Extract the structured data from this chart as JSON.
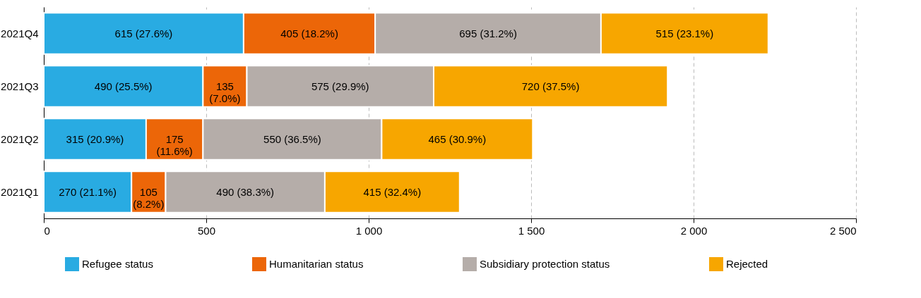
{
  "chart_data": {
    "type": "bar",
    "orientation": "horizontal",
    "stacked": true,
    "categories": [
      "2021Q4",
      "2021Q3",
      "2021Q2",
      "2021Q1"
    ],
    "series": [
      {
        "name": "Refugee status",
        "color": "#29abe2",
        "values": [
          615,
          490,
          315,
          270
        ],
        "value_labels": [
          "615 (27.6%)",
          "490 (25.5%)",
          "315 (20.9%)",
          "270 (21.1%)"
        ]
      },
      {
        "name": "Humanitarian status",
        "color": "#ec6608",
        "values": [
          405,
          135,
          175,
          105
        ],
        "value_labels": [
          "405 (18.2%)",
          "135 (7.0%)",
          "175 (11.6%)",
          "105 (8.2%)"
        ]
      },
      {
        "name": "Subsidiary protection status",
        "color": "#b5ada9",
        "values": [
          695,
          575,
          550,
          490
        ],
        "value_labels": [
          "695 (31.2%)",
          "575 (29.9%)",
          "550 (36.5%)",
          "490 (38.3%)"
        ]
      },
      {
        "name": "Rejected",
        "color": "#f7a600",
        "values": [
          515,
          720,
          465,
          415
        ],
        "value_labels": [
          "515 (23.1%)",
          "720 (37.5%)",
          "465 (30.9%)",
          "415 (32.4%)"
        ]
      }
    ],
    "xlim": [
      0,
      2500
    ],
    "xticks": [
      0,
      500,
      {
        "value": 1000,
        "label": "1 000"
      },
      {
        "value": 1500,
        "label": "1 500"
      },
      {
        "value": 2000,
        "label": "2 000"
      },
      {
        "value": 2500,
        "label": "2 500"
      }
    ],
    "grid": "x",
    "legend": "bottom"
  }
}
